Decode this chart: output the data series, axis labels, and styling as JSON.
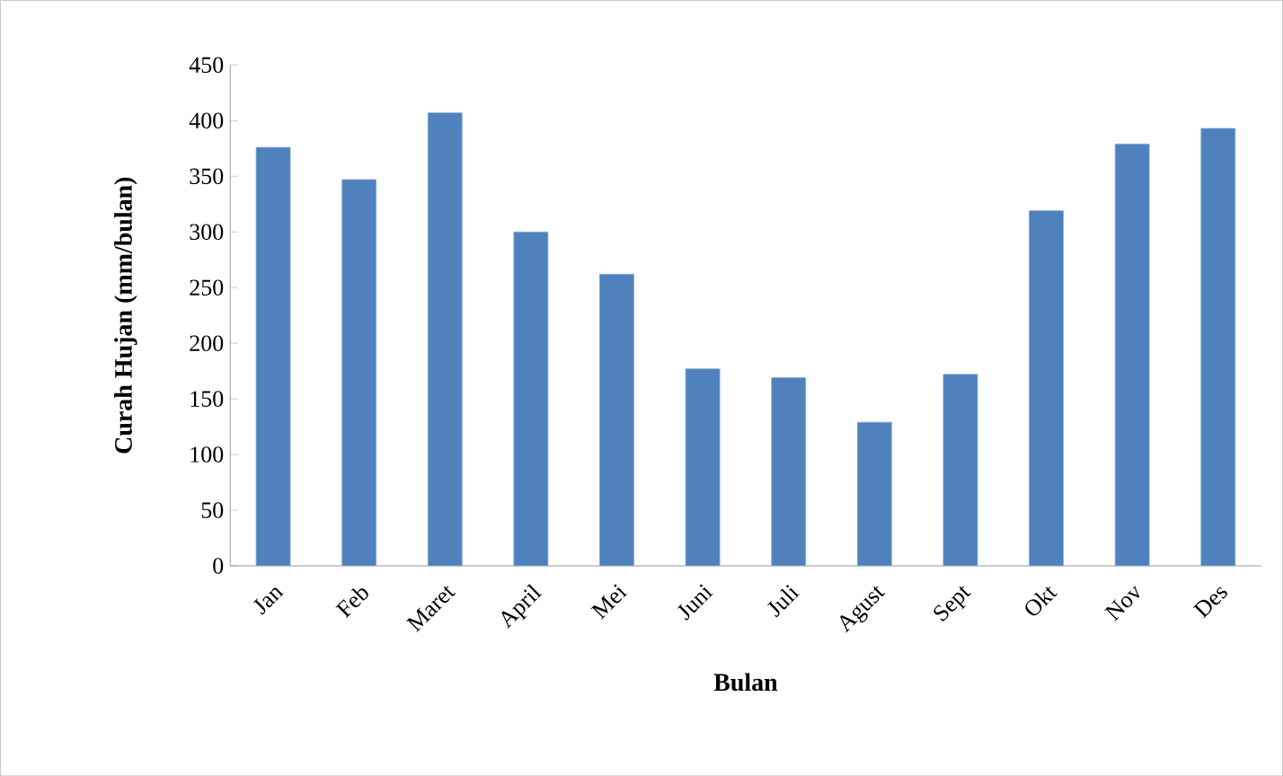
{
  "chart_data": {
    "type": "bar",
    "xlabel": "Bulan",
    "ylabel": "Curah Hujan (mm/bulan)",
    "categories": [
      "Jan",
      "Feb",
      "Maret",
      "April",
      "Mei",
      "Juni",
      "Juli",
      "Agust",
      "Sept",
      "Okt",
      "Nov",
      "Des"
    ],
    "values": [
      376,
      347,
      407,
      300,
      262,
      177,
      169,
      129,
      172,
      319,
      379,
      393
    ],
    "color": "#4f81bd",
    "ylim": [
      0,
      450
    ],
    "yticks": [
      0,
      50,
      100,
      150,
      200,
      250,
      300,
      350,
      400,
      450
    ],
    "grid": false
  }
}
